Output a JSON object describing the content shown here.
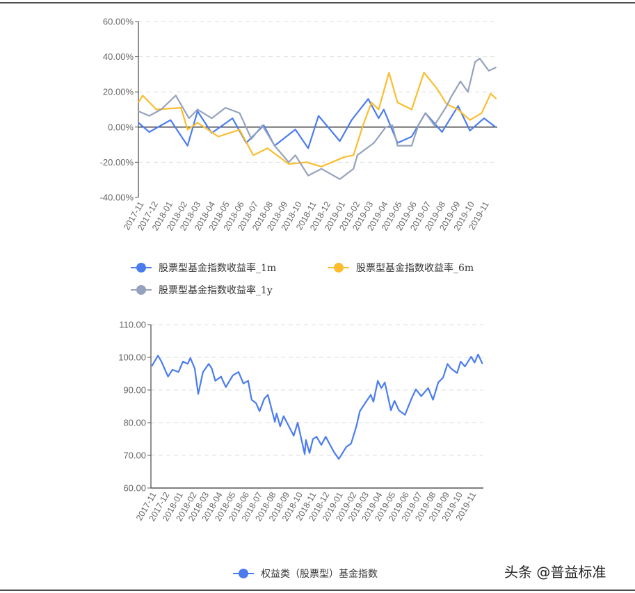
{
  "watermark": "头条 @普益标准",
  "chart_data": [
    {
      "type": "line",
      "xlabel": "",
      "ylabel": "",
      "ylim": [
        -40,
        60
      ],
      "y_tick_labels": [
        "60.00%",
        "40.00%",
        "20.00%",
        "0.00%",
        "-20.00%",
        "-40.00%"
      ],
      "y_ticks": [
        60,
        40,
        20,
        0,
        -20,
        -40
      ],
      "x_range": [
        "2017-11-01",
        "2019-11-30"
      ],
      "x_tick_labels": [
        "2017-11",
        "2017-12",
        "2018-01",
        "2018-02",
        "2018-03",
        "2018-04",
        "2018-05",
        "2018-06",
        "2018-07",
        "2018-08",
        "2018-09",
        "2018-10",
        "2018-11",
        "2018-12",
        "2019-01",
        "2019-02",
        "2019-03",
        "2019-04",
        "2019-05",
        "2019-06",
        "2019-07",
        "2019-08",
        "2019-09",
        "2019-10",
        "2019-11"
      ],
      "grid": true,
      "legend_position": "bottom",
      "series": [
        {
          "name": "股票型基金指数收益率_1m",
          "color": "#4a7cf0",
          "points": [
            [
              "2017-11-01",
              2.5
            ],
            [
              "2017-11-24",
              -2.8
            ],
            [
              "2018-01-08",
              4
            ],
            [
              "2018-02-13",
              -10.6
            ],
            [
              "2018-03-06",
              9
            ],
            [
              "2018-04-05",
              -3.4
            ],
            [
              "2018-05-19",
              5
            ],
            [
              "2018-06-17",
              -9
            ],
            [
              "2018-07-24",
              1
            ],
            [
              "2018-08-16",
              -10.6
            ],
            [
              "2018-09-29",
              -1.4
            ],
            [
              "2018-10-26",
              -12
            ],
            [
              "2018-11-17",
              6.4
            ],
            [
              "2019-01-01",
              -8
            ],
            [
              "2019-01-26",
              4
            ],
            [
              "2019-03-02",
              16
            ],
            [
              "2019-03-24",
              5
            ],
            [
              "2019-04-04",
              10
            ],
            [
              "2019-05-03",
              -9
            ],
            [
              "2019-06-02",
              -5.4
            ],
            [
              "2019-07-01",
              8
            ],
            [
              "2019-08-05",
              -2.8
            ],
            [
              "2019-09-08",
              12
            ],
            [
              "2019-10-03",
              -2
            ],
            [
              "2019-11-02",
              5
            ],
            [
              "2019-11-26",
              0
            ]
          ]
        },
        {
          "name": "股票型基金指数收益率_6m",
          "color": "#fbbd2e",
          "points": [
            [
              "2017-11-01",
              14
            ],
            [
              "2017-11-10",
              18
            ],
            [
              "2017-12-09",
              10
            ],
            [
              "2018-01-30",
              11
            ],
            [
              "2018-02-13",
              -1.5
            ],
            [
              "2018-03-06",
              2.5
            ],
            [
              "2018-04-19",
              -5.4
            ],
            [
              "2018-06-03",
              -1.5
            ],
            [
              "2018-07-02",
              -16
            ],
            [
              "2018-08-01",
              -12
            ],
            [
              "2018-09-15",
              -21
            ],
            [
              "2018-10-24",
              -20
            ],
            [
              "2018-11-23",
              -22.5
            ],
            [
              "2019-01-11",
              -17
            ],
            [
              "2019-01-30",
              -16
            ],
            [
              "2019-02-19",
              1
            ],
            [
              "2019-03-09",
              14
            ],
            [
              "2019-03-24",
              10
            ],
            [
              "2019-04-15",
              31
            ],
            [
              "2019-05-03",
              14
            ],
            [
              "2019-06-02",
              10
            ],
            [
              "2019-06-28",
              31
            ],
            [
              "2019-07-25",
              22
            ],
            [
              "2019-08-15",
              13
            ],
            [
              "2019-09-08",
              10
            ],
            [
              "2019-10-03",
              4
            ],
            [
              "2019-10-28",
              8
            ],
            [
              "2019-11-16",
              19
            ],
            [
              "2019-11-28",
              16
            ]
          ]
        },
        {
          "name": "股票型基金指数收益率_1y",
          "color": "#95a2bd",
          "points": [
            [
              "2017-11-01",
              9
            ],
            [
              "2017-11-24",
              6.4
            ],
            [
              "2017-12-19",
              10
            ],
            [
              "2018-01-19",
              18
            ],
            [
              "2018-02-16",
              5
            ],
            [
              "2018-03-06",
              10
            ],
            [
              "2018-04-05",
              5
            ],
            [
              "2018-05-04",
              11
            ],
            [
              "2018-06-03",
              8
            ],
            [
              "2018-06-28",
              -6.7
            ],
            [
              "2018-07-21",
              1
            ],
            [
              "2018-08-16",
              -10.6
            ],
            [
              "2018-09-15",
              -20
            ],
            [
              "2018-09-29",
              -16
            ],
            [
              "2018-10-26",
              -27.6
            ],
            [
              "2018-11-23",
              -23.7
            ],
            [
              "2019-01-01",
              -29.6
            ],
            [
              "2019-01-30",
              -23.7
            ],
            [
              "2019-02-07",
              -16
            ],
            [
              "2019-03-14",
              -9
            ],
            [
              "2019-04-08",
              0
            ],
            [
              "2019-04-22",
              1
            ],
            [
              "2019-05-03",
              -10.6
            ],
            [
              "2019-06-02",
              -10.6
            ],
            [
              "2019-06-16",
              1
            ],
            [
              "2019-07-01",
              8
            ],
            [
              "2019-07-20",
              1
            ],
            [
              "2019-08-15",
              12
            ],
            [
              "2019-08-24",
              17
            ],
            [
              "2019-09-13",
              26
            ],
            [
              "2019-09-29",
              20
            ],
            [
              "2019-10-14",
              37
            ],
            [
              "2019-10-24",
              39
            ],
            [
              "2019-11-12",
              32
            ],
            [
              "2019-11-28",
              34
            ]
          ]
        }
      ]
    },
    {
      "type": "line",
      "xlabel": "",
      "ylabel": "",
      "ylim": [
        60,
        110
      ],
      "y_tick_labels": [
        "110.00",
        "100.00",
        "90.00",
        "80.00",
        "70.00",
        "60.00"
      ],
      "y_ticks": [
        110,
        100,
        90,
        80,
        70,
        60
      ],
      "x_range": [
        "2017-11-01",
        "2019-11-30"
      ],
      "x_tick_labels": [
        "2017-11",
        "2017-12",
        "2018-01",
        "2018-02",
        "2018-03",
        "2018-04",
        "2018-05",
        "2018-06",
        "2018-07",
        "2018-08",
        "2018-09",
        "2018-10",
        "2018-11",
        "2018-12",
        "2019-01",
        "2019-02",
        "2019-03",
        "2019-04",
        "2019-05",
        "2019-06",
        "2019-07",
        "2019-08",
        "2019-09",
        "2019-10",
        "2019-11"
      ],
      "grid": true,
      "legend_position": "bottom",
      "series": [
        {
          "name": "权益类（股票型）基金指数",
          "color": "#4a7cf0",
          "points": [
            [
              "2017-11-03",
              97.3
            ],
            [
              "2017-11-17",
              100.5
            ],
            [
              "2017-11-25",
              98.7
            ],
            [
              "2017-12-10",
              94.1
            ],
            [
              "2017-12-20",
              96.2
            ],
            [
              "2018-01-03",
              95.5
            ],
            [
              "2018-01-13",
              98.7
            ],
            [
              "2018-01-24",
              98
            ],
            [
              "2018-01-30",
              99.8
            ],
            [
              "2018-02-09",
              96.6
            ],
            [
              "2018-02-17",
              88.8
            ],
            [
              "2018-02-28",
              95.5
            ],
            [
              "2018-03-13",
              98
            ],
            [
              "2018-03-20",
              96.6
            ],
            [
              "2018-03-28",
              92.8
            ],
            [
              "2018-04-10",
              94.1
            ],
            [
              "2018-04-21",
              90.9
            ],
            [
              "2018-05-07",
              94.5
            ],
            [
              "2018-05-20",
              95.5
            ],
            [
              "2018-05-31",
              92
            ],
            [
              "2018-06-11",
              92.8
            ],
            [
              "2018-06-19",
              87
            ],
            [
              "2018-06-29",
              86
            ],
            [
              "2018-07-07",
              83.5
            ],
            [
              "2018-07-18",
              87.4
            ],
            [
              "2018-07-26",
              88.5
            ],
            [
              "2018-08-11",
              80.3
            ],
            [
              "2018-08-15",
              82.8
            ],
            [
              "2018-08-23",
              78.9
            ],
            [
              "2018-08-31",
              82
            ],
            [
              "2018-09-23",
              76
            ],
            [
              "2018-10-02",
              80
            ],
            [
              "2018-10-18",
              70.4
            ],
            [
              "2018-10-21",
              74.7
            ],
            [
              "2018-10-29",
              70.7
            ],
            [
              "2018-11-06",
              75
            ],
            [
              "2018-11-14",
              75.7
            ],
            [
              "2018-11-25",
              73.2
            ],
            [
              "2018-12-05",
              75.7
            ],
            [
              "2018-12-24",
              71
            ],
            [
              "2019-01-04",
              68.9
            ],
            [
              "2019-01-21",
              72.6
            ],
            [
              "2019-02-01",
              73.6
            ],
            [
              "2019-02-13",
              78.9
            ],
            [
              "2019-02-21",
              83.5
            ],
            [
              "2019-03-05",
              86
            ],
            [
              "2019-03-18",
              88.5
            ],
            [
              "2019-03-24",
              86.4
            ],
            [
              "2019-04-03",
              92.8
            ],
            [
              "2019-04-11",
              90.6
            ],
            [
              "2019-04-19",
              92.3
            ],
            [
              "2019-05-03",
              83.8
            ],
            [
              "2019-05-11",
              86.7
            ],
            [
              "2019-05-21",
              83.8
            ],
            [
              "2019-06-04",
              82.4
            ],
            [
              "2019-06-20",
              87.7
            ],
            [
              "2019-06-29",
              90.2
            ],
            [
              "2019-07-11",
              88.1
            ],
            [
              "2019-07-27",
              90.6
            ],
            [
              "2019-08-07",
              87
            ],
            [
              "2019-08-19",
              92.3
            ],
            [
              "2019-08-30",
              93.8
            ],
            [
              "2019-09-09",
              98
            ],
            [
              "2019-09-17",
              96.6
            ],
            [
              "2019-10-01",
              95.2
            ],
            [
              "2019-10-09",
              98.7
            ],
            [
              "2019-10-19",
              97.2
            ],
            [
              "2019-11-02",
              100.2
            ],
            [
              "2019-11-10",
              98.4
            ],
            [
              "2019-11-18",
              100.9
            ],
            [
              "2019-11-28",
              98
            ]
          ]
        }
      ]
    }
  ]
}
